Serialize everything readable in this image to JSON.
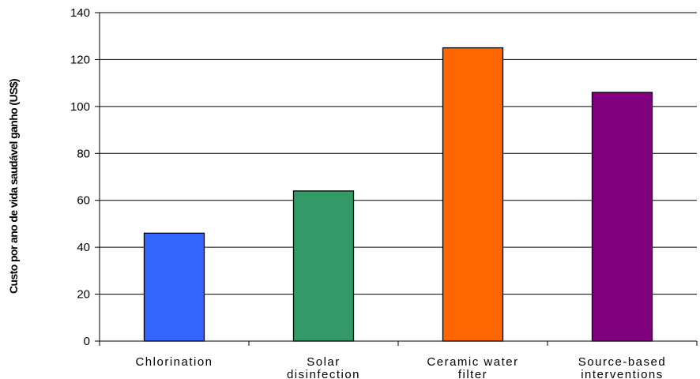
{
  "chart_data": {
    "type": "bar",
    "categories": [
      [
        "Chlorination"
      ],
      [
        "Solar",
        "disinfection"
      ],
      [
        "Ceramic water",
        "filter"
      ],
      [
        "Source-based",
        "interventions"
      ]
    ],
    "values": [
      46,
      64,
      125,
      106
    ],
    "colors": [
      "#3366ff",
      "#339966",
      "#ff6600",
      "#800080"
    ],
    "ylabel": "Custo por ano de vida saudável ganho (US$)",
    "ylim": [
      0,
      140
    ],
    "yticks": [
      0,
      20,
      40,
      60,
      80,
      100,
      120,
      140
    ],
    "grid": true,
    "legend": "none"
  }
}
